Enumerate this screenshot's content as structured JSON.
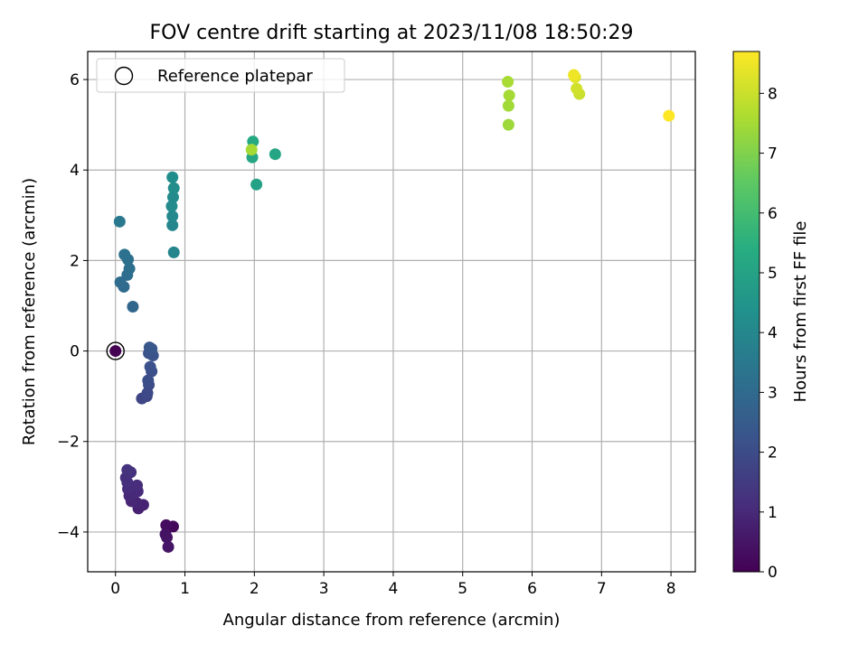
{
  "chart_data": {
    "type": "scatter",
    "title": "FOV centre drift starting at 2023/11/08 18:50:29",
    "xlabel": "Angular distance from reference (arcmin)",
    "ylabel": "Rotation from reference (arcmin)",
    "xlim": [
      -0.4,
      8.35
    ],
    "ylim": [
      -4.88,
      6.62
    ],
    "xticks": [
      0,
      1,
      2,
      3,
      4,
      5,
      6,
      7,
      8
    ],
    "yticks": [
      -4,
      -2,
      0,
      2,
      4,
      6
    ],
    "grid": true,
    "colormap": "viridis",
    "colorbar": {
      "label": "Hours from first FF file",
      "range": [
        0,
        8.7
      ],
      "ticks": [
        0,
        1,
        2,
        3,
        4,
        5,
        6,
        7,
        8
      ]
    },
    "legend": {
      "placement": "top-left",
      "entries": [
        {
          "label": "Reference platepar",
          "marker": "open-circle"
        }
      ]
    },
    "reference_point": {
      "x": 0,
      "y": 0,
      "label": "Reference platepar"
    },
    "points": [
      {
        "x": 0.0,
        "y": 0.0,
        "hours": 0.0
      },
      {
        "x": 0.83,
        "y": -3.88,
        "hours": 0.2
      },
      {
        "x": 0.73,
        "y": -3.85,
        "hours": 0.3
      },
      {
        "x": 0.72,
        "y": -4.05,
        "hours": 0.4
      },
      {
        "x": 0.74,
        "y": -4.12,
        "hours": 0.45
      },
      {
        "x": 0.76,
        "y": -4.33,
        "hours": 0.5
      },
      {
        "x": 0.33,
        "y": -3.48,
        "hours": 0.8
      },
      {
        "x": 0.4,
        "y": -3.4,
        "hours": 0.85
      },
      {
        "x": 0.3,
        "y": -3.35,
        "hours": 0.9
      },
      {
        "x": 0.23,
        "y": -3.32,
        "hours": 0.95
      },
      {
        "x": 0.2,
        "y": -3.2,
        "hours": 1.0
      },
      {
        "x": 0.32,
        "y": -3.1,
        "hours": 1.05
      },
      {
        "x": 0.18,
        "y": -3.05,
        "hours": 1.1
      },
      {
        "x": 0.31,
        "y": -2.97,
        "hours": 1.1
      },
      {
        "x": 0.17,
        "y": -2.9,
        "hours": 1.15
      },
      {
        "x": 0.15,
        "y": -2.8,
        "hours": 1.15
      },
      {
        "x": 0.22,
        "y": -2.68,
        "hours": 1.2
      },
      {
        "x": 0.17,
        "y": -2.63,
        "hours": 1.25
      },
      {
        "x": 0.38,
        "y": -1.05,
        "hours": 1.8
      },
      {
        "x": 0.45,
        "y": -1.0,
        "hours": 1.85
      },
      {
        "x": 0.46,
        "y": -0.93,
        "hours": 1.9
      },
      {
        "x": 0.48,
        "y": -0.75,
        "hours": 2.0
      },
      {
        "x": 0.47,
        "y": -0.65,
        "hours": 2.05
      },
      {
        "x": 0.52,
        "y": -0.45,
        "hours": 2.1
      },
      {
        "x": 0.5,
        "y": -0.35,
        "hours": 2.15
      },
      {
        "x": 0.54,
        "y": -0.1,
        "hours": 2.2
      },
      {
        "x": 0.48,
        "y": -0.05,
        "hours": 2.25
      },
      {
        "x": 0.52,
        "y": 0.05,
        "hours": 2.3
      },
      {
        "x": 0.49,
        "y": 0.08,
        "hours": 2.35
      },
      {
        "x": 0.25,
        "y": 0.98,
        "hours": 2.9
      },
      {
        "x": 0.12,
        "y": 1.42,
        "hours": 3.0
      },
      {
        "x": 0.07,
        "y": 1.52,
        "hours": 3.05
      },
      {
        "x": 0.17,
        "y": 1.68,
        "hours": 3.1
      },
      {
        "x": 0.2,
        "y": 1.82,
        "hours": 3.15
      },
      {
        "x": 0.18,
        "y": 2.02,
        "hours": 3.2
      },
      {
        "x": 0.13,
        "y": 2.13,
        "hours": 3.25
      },
      {
        "x": 0.06,
        "y": 2.86,
        "hours": 3.5
      },
      {
        "x": 0.84,
        "y": 2.18,
        "hours": 3.9
      },
      {
        "x": 0.82,
        "y": 2.78,
        "hours": 4.0
      },
      {
        "x": 0.82,
        "y": 2.98,
        "hours": 4.05
      },
      {
        "x": 0.81,
        "y": 3.2,
        "hours": 4.1
      },
      {
        "x": 0.83,
        "y": 3.4,
        "hours": 4.15
      },
      {
        "x": 0.84,
        "y": 3.6,
        "hours": 4.2
      },
      {
        "x": 0.82,
        "y": 3.84,
        "hours": 4.25
      },
      {
        "x": 2.03,
        "y": 3.68,
        "hours": 5.0
      },
      {
        "x": 2.3,
        "y": 4.35,
        "hours": 5.1
      },
      {
        "x": 1.97,
        "y": 4.28,
        "hours": 5.15
      },
      {
        "x": 1.98,
        "y": 4.63,
        "hours": 5.2
      },
      {
        "x": 1.96,
        "y": 4.45,
        "hours": 7.5
      },
      {
        "x": 5.66,
        "y": 5.0,
        "hours": 7.4
      },
      {
        "x": 5.66,
        "y": 5.42,
        "hours": 7.45
      },
      {
        "x": 5.67,
        "y": 5.65,
        "hours": 7.5
      },
      {
        "x": 5.65,
        "y": 5.95,
        "hours": 7.55
      },
      {
        "x": 6.68,
        "y": 5.68,
        "hours": 8.0
      },
      {
        "x": 6.64,
        "y": 5.8,
        "hours": 8.1
      },
      {
        "x": 6.62,
        "y": 6.05,
        "hours": 8.3
      },
      {
        "x": 6.6,
        "y": 6.1,
        "hours": 8.5
      },
      {
        "x": 7.97,
        "y": 5.2,
        "hours": 8.7
      }
    ]
  }
}
